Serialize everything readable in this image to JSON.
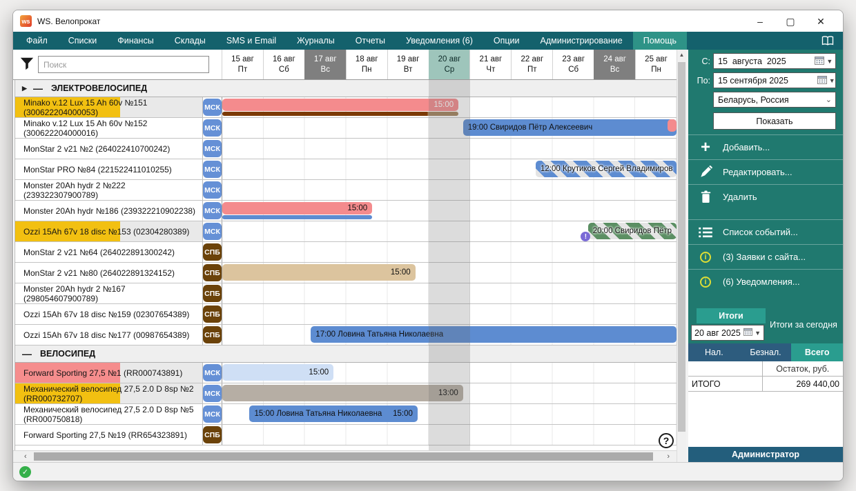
{
  "window": {
    "title": "WS. Велопрокат",
    "logo": "ws",
    "minimize": "–",
    "maximize": "▢",
    "close": "✕"
  },
  "menu": {
    "items": [
      "Файл",
      "Списки",
      "Финансы",
      "Склады",
      "SMS и Email",
      "Журналы",
      "Отчеты",
      "Уведомления (6)",
      "Опции",
      "Администрирование",
      "Помощь"
    ],
    "active_index": 10
  },
  "search": {
    "placeholder": "Поиск"
  },
  "calendar": {
    "days": [
      {
        "date": "15 авг",
        "dow": "Пт",
        "state": "normal"
      },
      {
        "date": "16 авг",
        "dow": "Сб",
        "state": "normal"
      },
      {
        "date": "17 авг",
        "dow": "Вс",
        "state": "past"
      },
      {
        "date": "18 авг",
        "dow": "Пн",
        "state": "normal"
      },
      {
        "date": "19 авг",
        "dow": "Вт",
        "state": "normal"
      },
      {
        "date": "20 авг",
        "dow": "Ср",
        "state": "today"
      },
      {
        "date": "21 авг",
        "dow": "Чт",
        "state": "normal"
      },
      {
        "date": "22 авг",
        "dow": "Пт",
        "state": "normal"
      },
      {
        "date": "23 авг",
        "dow": "Сб",
        "state": "normal"
      },
      {
        "date": "24 авг",
        "dow": "Вс",
        "state": "past"
      },
      {
        "date": "25 авг",
        "dow": "Пн",
        "state": "normal"
      }
    ]
  },
  "groups": [
    {
      "label": "ЭЛЕКТРОВЕЛОСИПЕД",
      "has_arrow": true,
      "rows": [
        {
          "name": "Minako v.12 Lux 15 Ah 60v №151 (300622204000053)",
          "badge": "МСК",
          "badge_style": "msk",
          "highlight": "yellow",
          "bars": [
            {
              "style": "salmon",
              "from": 0,
              "to": 52,
              "label_end": "15:00",
              "text": "light",
              "has_sub": true
            },
            {
              "style": "sub brown",
              "sub": true,
              "from": 0,
              "to": 52
            }
          ]
        },
        {
          "name": "Minako v.12 Lux 15 Ah 60v №152 (300622204000016)",
          "badge": "МСК",
          "badge_style": "msk",
          "highlight": null,
          "bars": [
            {
              "style": "blue",
              "from": 53,
              "to": 100,
              "label": "19:00 Свиридов Пётр Алексеевич"
            },
            {
              "style": "frag",
              "frag": true,
              "from": 98,
              "to": 100
            }
          ]
        },
        {
          "name": "MonStar 2 v21 №2 (264022410700242)",
          "badge": "МСК",
          "badge_style": "msk",
          "highlight": null,
          "bars": []
        },
        {
          "name": "MonStar PRO №84 (221522411010255)",
          "badge": "МСК",
          "badge_style": "msk",
          "highlight": null,
          "bars": [
            {
              "style": "stripe-blue",
              "from": 69,
              "to": 100,
              "label": "12:00 Крутиков Сергей Владимиров"
            }
          ]
        },
        {
          "name": "Monster 20Ah hydr 2 №222 (239322307900789)",
          "badge": "МСК",
          "badge_style": "msk",
          "highlight": null,
          "bars": []
        },
        {
          "name": "Monster 20Ah hydr №186 (239322210902238)",
          "badge": "МСК",
          "badge_style": "msk",
          "highlight": null,
          "bars": [
            {
              "style": "salmon",
              "from": 0,
              "to": 33,
              "label_end": "15:00",
              "has_sub": true
            },
            {
              "style": "sub blue2",
              "sub": true,
              "from": 0,
              "to": 33
            }
          ]
        },
        {
          "name": "Ozzi 15Ah 67v 18 disc №153 (02304280389)",
          "badge": "МСК",
          "badge_style": "msk",
          "highlight": "yellow",
          "bars": [
            {
              "style": "stripe-green",
              "from": 80.5,
              "to": 100,
              "label": "20:00 Свиридов Пётр"
            },
            {
              "style": "warn",
              "warn": true,
              "from": 80
            }
          ]
        },
        {
          "name": "MonStar 2 v21 №64 (264022891300242)",
          "badge": "СПБ",
          "badge_style": "spb",
          "highlight": null,
          "bars": []
        },
        {
          "name": "MonStar 2 v21 №80 (264022891324152)",
          "badge": "СПБ",
          "badge_style": "spb",
          "highlight": null,
          "bars": [
            {
              "style": "tan",
              "from": 0,
              "to": 42.5,
              "label_end": "15:00"
            }
          ]
        },
        {
          "name": "Monster 20Ah hydr 2 №167 (298054607900789)",
          "badge": "СПБ",
          "badge_style": "spb",
          "highlight": null,
          "bars": []
        },
        {
          "name": "Ozzi 15Ah 67v 18 disc №159 (02307654389)",
          "badge": "СПБ",
          "badge_style": "spb",
          "highlight": null,
          "bars": []
        },
        {
          "name": "Ozzi 15Ah 67v 18 disc №177 (00987654389)",
          "badge": "СПБ",
          "badge_style": "spb",
          "highlight": null,
          "bars": [
            {
              "style": "blue",
              "from": 19.5,
              "to": 100,
              "label": "17:00 Ловина Татьяна Николаевна"
            }
          ]
        }
      ]
    },
    {
      "label": "ВЕЛОСИПЕД",
      "has_arrow": false,
      "rows": [
        {
          "name": "Forward Sporting 27,5 №1 (RR000743891)",
          "badge": "МСК",
          "badge_style": "msk",
          "highlight": "pink",
          "bars": [
            {
              "style": "lightblue",
              "from": 0,
              "to": 24.5,
              "label_end": "15:00"
            }
          ]
        },
        {
          "name": "Механический велосипед 27,5 2.0 D 8sp №2 (RR000732707)",
          "badge": "МСК",
          "badge_style": "msk",
          "highlight": "yellow",
          "bars": [
            {
              "style": "taupe",
              "from": 0,
              "to": 53,
              "label_end": "13:00"
            }
          ]
        },
        {
          "name": "Механический велосипед 27,5 2.0 D 8sp №5 (RR000750818)",
          "badge": "МСК",
          "badge_style": "msk",
          "highlight": null,
          "bars": [
            {
              "style": "blue",
              "from": 6,
              "to": 43,
              "label": "15:00 Ловина Татьяна Николаевна",
              "label_end": "15:00"
            }
          ]
        },
        {
          "name": "Forward Sporting 27,5 №19 (RR654323891)",
          "badge": "СПБ",
          "badge_style": "spb",
          "highlight": null,
          "bars": []
        }
      ]
    }
  ],
  "sidebar": {
    "from_label": "С:",
    "from_value": "15  августа  2025",
    "to_label": "По:",
    "to_value": "15 сентября 2025",
    "country": "Беларусь, Россия",
    "show_button": "Показать",
    "actions": [
      {
        "icon": "plus-icon",
        "label": "Добавить...",
        "name": "add-button"
      },
      {
        "icon": "pencil-icon",
        "label": "Редактировать...",
        "name": "edit-button"
      },
      {
        "icon": "trash-icon",
        "label": "Удалить",
        "name": "delete-button"
      },
      {
        "icon": "list-icon",
        "label": "Список событий...",
        "name": "events-list-button",
        "gap_before": true
      },
      {
        "icon": "info-icon",
        "label": "(3) Заявки с сайта...",
        "name": "site-requests-button"
      },
      {
        "icon": "info-icon",
        "label": "(6) Уведомления...",
        "name": "notifications-button"
      }
    ]
  },
  "totals": {
    "tab": "Итоги",
    "date": "20 авг 2025",
    "caption": "Итоги за сегодня",
    "pay_tabs": [
      "Нал.",
      "Безнал.",
      "Всего"
    ],
    "active_pay_tab": 2,
    "col_header": "Остаток, руб.",
    "row_label": "ИТОГО",
    "row_value": "269 440,00"
  },
  "admin": "Администратор",
  "colors": {
    "accent_teal": "#2a9d8f",
    "menu_teal": "#14616c",
    "sidebar_teal": "#20796f",
    "admin_blue": "#235e7c",
    "msk_badge": "#6590d6",
    "spb_badge": "#6b4209"
  }
}
